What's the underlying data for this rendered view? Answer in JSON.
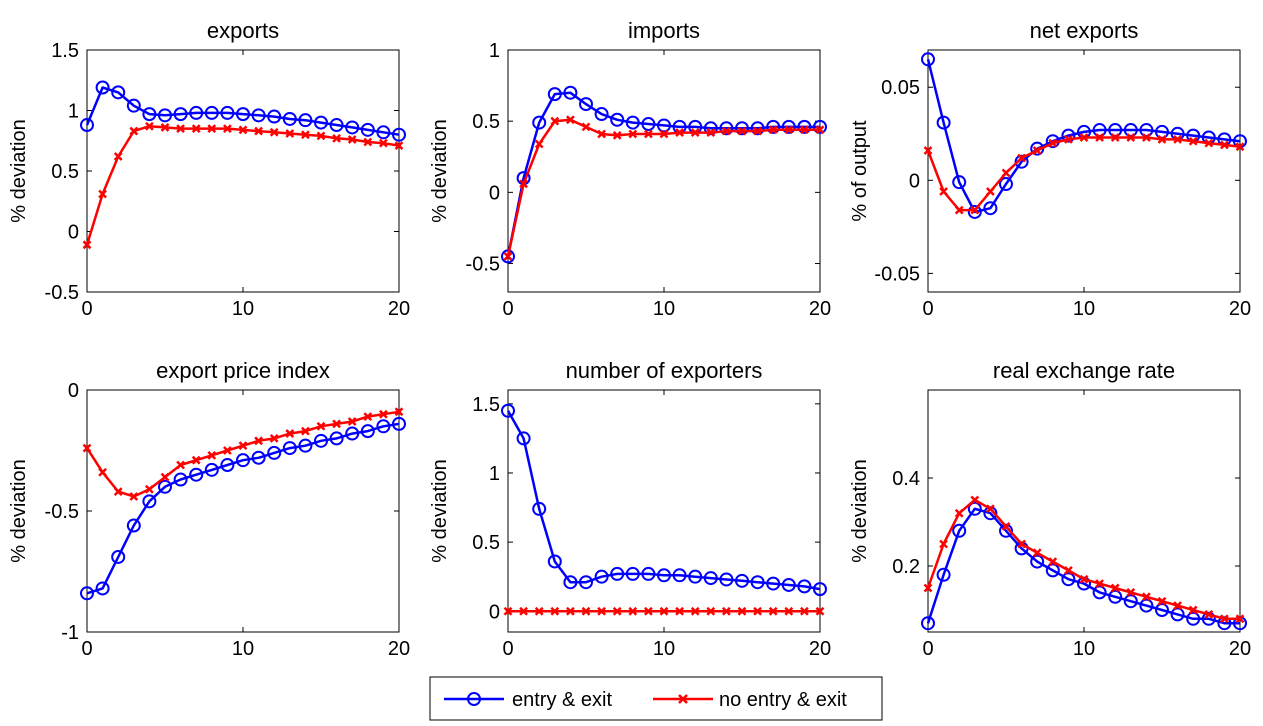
{
  "legend": {
    "entries": [
      {
        "label": "entry & exit",
        "color": "#0000ff",
        "marker": "circle"
      },
      {
        "label": "no entry & exit",
        "color": "#ff0000",
        "marker": "x"
      }
    ]
  },
  "chart_data": [
    {
      "type": "line",
      "title": "exports",
      "xlabel": "",
      "ylabel": "% deviation",
      "xlim": [
        0,
        20
      ],
      "ylim": [
        -0.5,
        1.5
      ],
      "xticks": [
        "0",
        "10",
        "20"
      ],
      "yticks": [
        "-0.5",
        "0",
        "0.5",
        "1",
        "1.5"
      ],
      "x": [
        0,
        1,
        2,
        3,
        4,
        5,
        6,
        7,
        8,
        9,
        10,
        11,
        12,
        13,
        14,
        15,
        16,
        17,
        18,
        19,
        20
      ],
      "series": [
        {
          "name": "entry & exit",
          "values": [
            0.88,
            1.19,
            1.15,
            1.04,
            0.97,
            0.96,
            0.97,
            0.98,
            0.98,
            0.98,
            0.97,
            0.96,
            0.95,
            0.93,
            0.92,
            0.9,
            0.88,
            0.86,
            0.84,
            0.82,
            0.8
          ]
        },
        {
          "name": "no entry & exit",
          "values": [
            -0.11,
            0.31,
            0.62,
            0.83,
            0.87,
            0.86,
            0.85,
            0.85,
            0.85,
            0.85,
            0.84,
            0.83,
            0.82,
            0.81,
            0.8,
            0.79,
            0.77,
            0.76,
            0.74,
            0.73,
            0.71
          ]
        }
      ]
    },
    {
      "type": "line",
      "title": "imports",
      "xlabel": "",
      "ylabel": "% deviation",
      "xlim": [
        0,
        20
      ],
      "ylim": [
        -0.7,
        1
      ],
      "xticks": [
        "0",
        "10",
        "20"
      ],
      "yticks": [
        "-0.5",
        "0",
        "0.5",
        "1"
      ],
      "x": [
        0,
        1,
        2,
        3,
        4,
        5,
        6,
        7,
        8,
        9,
        10,
        11,
        12,
        13,
        14,
        15,
        16,
        17,
        18,
        19,
        20
      ],
      "series": [
        {
          "name": "entry & exit",
          "values": [
            -0.45,
            0.1,
            0.49,
            0.69,
            0.7,
            0.62,
            0.55,
            0.51,
            0.49,
            0.48,
            0.47,
            0.46,
            0.46,
            0.45,
            0.45,
            0.45,
            0.45,
            0.46,
            0.46,
            0.46,
            0.46
          ]
        },
        {
          "name": "no entry & exit",
          "values": [
            -0.45,
            0.06,
            0.34,
            0.5,
            0.51,
            0.46,
            0.41,
            0.4,
            0.41,
            0.41,
            0.41,
            0.42,
            0.42,
            0.42,
            0.43,
            0.43,
            0.43,
            0.44,
            0.44,
            0.44,
            0.44
          ]
        }
      ]
    },
    {
      "type": "line",
      "title": "net exports",
      "xlabel": "",
      "ylabel": "% of output",
      "xlim": [
        0,
        20
      ],
      "ylim": [
        -0.06,
        0.07
      ],
      "xticks": [
        "0",
        "10",
        "20"
      ],
      "yticks": [
        "-0.05",
        "0",
        "0.05"
      ],
      "x": [
        0,
        1,
        2,
        3,
        4,
        5,
        6,
        7,
        8,
        9,
        10,
        11,
        12,
        13,
        14,
        15,
        16,
        17,
        18,
        19,
        20
      ],
      "series": [
        {
          "name": "entry & exit",
          "values": [
            0.065,
            0.031,
            -0.001,
            -0.017,
            -0.015,
            -0.002,
            0.01,
            0.017,
            0.021,
            0.024,
            0.026,
            0.027,
            0.027,
            0.027,
            0.027,
            0.026,
            0.025,
            0.024,
            0.023,
            0.022,
            0.021
          ]
        },
        {
          "name": "no entry & exit",
          "values": [
            0.016,
            -0.006,
            -0.016,
            -0.016,
            -0.006,
            0.004,
            0.012,
            0.016,
            0.02,
            0.022,
            0.023,
            0.023,
            0.023,
            0.023,
            0.023,
            0.022,
            0.022,
            0.021,
            0.02,
            0.019,
            0.018
          ]
        }
      ]
    },
    {
      "type": "line",
      "title": "export price index",
      "xlabel": "",
      "ylabel": "% deviation",
      "xlim": [
        0,
        20
      ],
      "ylim": [
        -1,
        0
      ],
      "xticks": [
        "0",
        "10",
        "20"
      ],
      "yticks": [
        "-1",
        "-0.5",
        "0"
      ],
      "x": [
        0,
        1,
        2,
        3,
        4,
        5,
        6,
        7,
        8,
        9,
        10,
        11,
        12,
        13,
        14,
        15,
        16,
        17,
        18,
        19,
        20
      ],
      "series": [
        {
          "name": "entry & exit",
          "values": [
            -0.84,
            -0.82,
            -0.69,
            -0.56,
            -0.46,
            -0.4,
            -0.37,
            -0.35,
            -0.33,
            -0.31,
            -0.29,
            -0.28,
            -0.26,
            -0.24,
            -0.23,
            -0.21,
            -0.2,
            -0.18,
            -0.17,
            -0.15,
            -0.14
          ]
        },
        {
          "name": "no entry & exit",
          "values": [
            -0.24,
            -0.34,
            -0.42,
            -0.44,
            -0.41,
            -0.36,
            -0.31,
            -0.29,
            -0.27,
            -0.25,
            -0.23,
            -0.21,
            -0.2,
            -0.18,
            -0.17,
            -0.15,
            -0.14,
            -0.13,
            -0.11,
            -0.1,
            -0.09
          ]
        }
      ]
    },
    {
      "type": "line",
      "title": "number of exporters",
      "xlabel": "",
      "ylabel": "% deviation",
      "xlim": [
        0,
        20
      ],
      "ylim": [
        -0.15,
        1.6
      ],
      "xticks": [
        "0",
        "10",
        "20"
      ],
      "yticks": [
        "0",
        "0.5",
        "1",
        "1.5"
      ],
      "x": [
        0,
        1,
        2,
        3,
        4,
        5,
        6,
        7,
        8,
        9,
        10,
        11,
        12,
        13,
        14,
        15,
        16,
        17,
        18,
        19,
        20
      ],
      "series": [
        {
          "name": "entry & exit",
          "values": [
            1.45,
            1.25,
            0.74,
            0.36,
            0.21,
            0.21,
            0.25,
            0.27,
            0.27,
            0.27,
            0.26,
            0.26,
            0.25,
            0.24,
            0.23,
            0.22,
            0.21,
            0.2,
            0.19,
            0.18,
            0.16
          ]
        },
        {
          "name": "no entry & exit",
          "values": [
            0,
            0,
            0,
            0,
            0,
            0,
            0,
            0,
            0,
            0,
            0,
            0,
            0,
            0,
            0,
            0,
            0,
            0,
            0,
            0,
            0
          ]
        }
      ]
    },
    {
      "type": "line",
      "title": "real exchange rate",
      "xlabel": "",
      "ylabel": "% deviation",
      "xlim": [
        0,
        20
      ],
      "ylim": [
        0.05,
        0.6
      ],
      "xticks": [
        "0",
        "10",
        "20"
      ],
      "yticks": [
        "0.2",
        "0.4"
      ],
      "x": [
        0,
        1,
        2,
        3,
        4,
        5,
        6,
        7,
        8,
        9,
        10,
        11,
        12,
        13,
        14,
        15,
        16,
        17,
        18,
        19,
        20
      ],
      "series": [
        {
          "name": "entry & exit",
          "values": [
            0.07,
            0.18,
            0.28,
            0.33,
            0.32,
            0.28,
            0.24,
            0.21,
            0.19,
            0.17,
            0.16,
            0.14,
            0.13,
            0.12,
            0.11,
            0.1,
            0.09,
            0.08,
            0.08,
            0.07,
            0.07
          ]
        },
        {
          "name": "no entry & exit",
          "values": [
            0.15,
            0.25,
            0.32,
            0.35,
            0.33,
            0.29,
            0.25,
            0.23,
            0.21,
            0.19,
            0.17,
            0.16,
            0.15,
            0.14,
            0.13,
            0.12,
            0.11,
            0.1,
            0.09,
            0.08,
            0.08
          ]
        }
      ]
    }
  ]
}
